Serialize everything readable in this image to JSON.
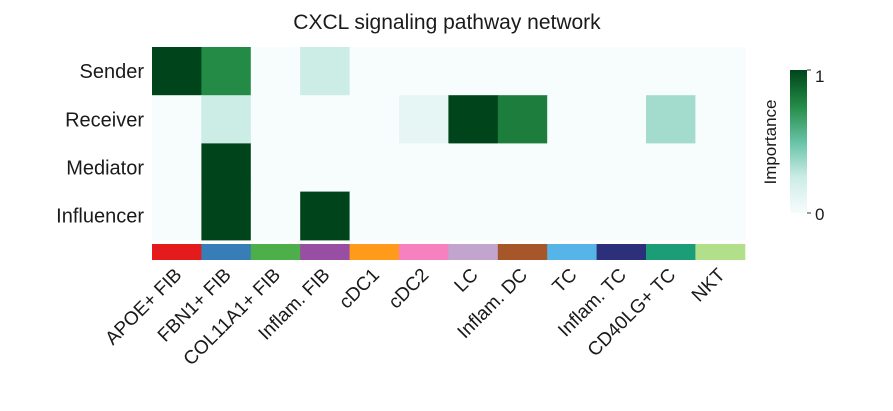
{
  "chart_data": {
    "type": "heatmap",
    "title": "CXCL signaling pathway network",
    "rows": [
      "Sender",
      "Receiver",
      "Mediator",
      "Influencer"
    ],
    "columns": [
      "APOE+ FIB",
      "FBN1+ FIB",
      "COL11A1+ FIB",
      "Inflam. FIB",
      "cDC1",
      "cDC2",
      "LC",
      "Inflam. DC",
      "TC",
      "Inflam. TC",
      "CD40LG+ TC",
      "NKT"
    ],
    "values": [
      [
        1.0,
        0.75,
        0.0,
        0.25,
        0.0,
        0.0,
        0.0,
        0.0,
        0.0,
        0.0,
        0.0,
        0.0
      ],
      [
        0.0,
        0.25,
        0.0,
        0.0,
        0.0,
        0.1,
        1.0,
        0.8,
        0.0,
        0.0,
        0.35,
        0.0
      ],
      [
        0.0,
        1.0,
        0.0,
        0.0,
        0.0,
        0.0,
        0.0,
        0.0,
        0.0,
        0.0,
        0.0,
        0.0
      ],
      [
        0.0,
        1.0,
        0.0,
        1.0,
        0.0,
        0.0,
        0.0,
        0.0,
        0.0,
        0.0,
        0.0,
        0.0
      ]
    ],
    "column_colors": [
      "#e41a1c",
      "#377eb8",
      "#4daf4a",
      "#984ea3",
      "#ff9a1a",
      "#f781bf",
      "#c2a5cf",
      "#a65628",
      "#56b4e9",
      "#2c2f7a",
      "#1b9e77",
      "#b2df8a"
    ],
    "colorbar": {
      "label": "Importance",
      "range": [
        0,
        1
      ],
      "ticks": [
        "0",
        "1"
      ],
      "colors": [
        "#f7fcfd",
        "#ccece6",
        "#66c2a4",
        "#238b45",
        "#00441b"
      ]
    }
  }
}
